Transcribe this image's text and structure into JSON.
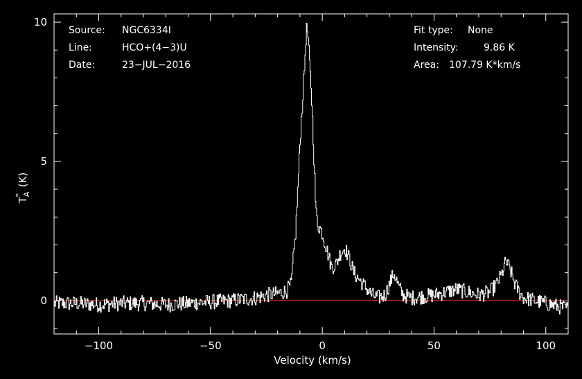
{
  "colors": {
    "background": "#000000",
    "foreground": "#ffffff",
    "baseline": "#cc2a22"
  },
  "header_left": {
    "source_label": "Source:",
    "source_value": "NGC6334I",
    "line_label": "Line:",
    "line_value": "HCO+(4−3)U",
    "date_label": "Date:",
    "date_value": "23−JUL−2016"
  },
  "header_right": {
    "fit_label": "Fit type:",
    "fit_value": "None",
    "intensity_label": "Intensity:",
    "intensity_value": "9.86 K",
    "area_label": "Area:",
    "area_value": "107.79 K*km/s"
  },
  "chart_data": {
    "type": "line",
    "title": "",
    "xlabel": "Velocity (km/s)",
    "ylabel": "T*A (K)",
    "xlim": [
      -120,
      110
    ],
    "ylim": [
      -1.2,
      10.3
    ],
    "x_ticks": [
      -100,
      -50,
      0,
      50,
      100
    ],
    "x_tick_labels": [
      "−100",
      "−50",
      "0",
      "50",
      "100"
    ],
    "y_ticks": [
      0,
      5,
      10
    ],
    "y_tick_labels": [
      "0",
      "5",
      "10"
    ],
    "grid": false,
    "legend": "none",
    "series": [
      {
        "x": [
          -120,
          -110,
          -100,
          -90,
          -80,
          -70,
          -60,
          -50,
          -40,
          -30,
          -25,
          -20,
          -16,
          -14,
          -12,
          -10,
          -9,
          -8,
          -7.5,
          -7,
          -6.5,
          -6,
          -5,
          -4,
          -3,
          -2,
          -1,
          0,
          2,
          4,
          6,
          8,
          10,
          12,
          14,
          16,
          18,
          20,
          22,
          25,
          28,
          30,
          32,
          34,
          36,
          40,
          45,
          50,
          55,
          60,
          65,
          70,
          75,
          78,
          80,
          82,
          84,
          86,
          88,
          90,
          95,
          100,
          105,
          110
        ],
        "y": [
          -0.1,
          -0.1,
          -0.15,
          -0.1,
          -0.1,
          -0.15,
          -0.1,
          -0.05,
          0,
          0.1,
          0.2,
          0.25,
          0.35,
          0.6,
          2.5,
          5.8,
          7.1,
          8.5,
          9.4,
          9.86,
          9.4,
          8.7,
          7.5,
          5.5,
          3.2,
          2.7,
          2.6,
          2.4,
          1.8,
          1.2,
          1.3,
          1.7,
          1.9,
          1.5,
          1.0,
          0.8,
          0.6,
          0.4,
          0.2,
          0.1,
          0.2,
          0.6,
          1.0,
          0.5,
          0.2,
          0.1,
          0.15,
          0.2,
          0.3,
          0.4,
          0.3,
          0.2,
          0.3,
          0.6,
          0.9,
          1.4,
          1.1,
          0.6,
          0.3,
          0.1,
          0,
          -0.1,
          -0.2,
          -0.3
        ]
      }
    ],
    "baseline": 0
  }
}
